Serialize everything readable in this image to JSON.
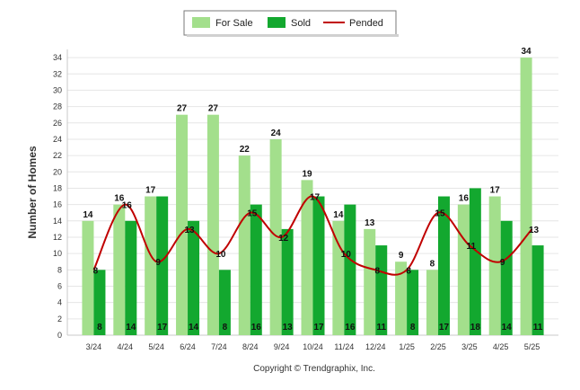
{
  "colors": {
    "for_sale": "#a3df8c",
    "sold": "#13a82f",
    "pended": "#c00000"
  },
  "legend": [
    "For Sale",
    "Sold",
    "Pended"
  ],
  "footer": "Copyright © Trendgraphix, Inc.",
  "chart_data": {
    "type": "bar",
    "ylabel": "Number of Homes",
    "xlabel": "",
    "ylim": [
      0,
      35
    ],
    "ytick_step": 2,
    "grid": true,
    "legend_position": "top-center",
    "categories": [
      "3/24",
      "4/24",
      "5/24",
      "6/24",
      "7/24",
      "8/24",
      "9/24",
      "10/24",
      "11/24",
      "12/24",
      "1/25",
      "2/25",
      "3/25",
      "4/25",
      "5/25"
    ],
    "series": [
      {
        "name": "For Sale",
        "type": "bar",
        "values": [
          14,
          16,
          17,
          27,
          27,
          22,
          24,
          19,
          14,
          13,
          9,
          8,
          16,
          17,
          34
        ]
      },
      {
        "name": "Sold",
        "type": "bar",
        "values": [
          8,
          14,
          17,
          14,
          8,
          16,
          13,
          17,
          16,
          11,
          8,
          17,
          18,
          14,
          11
        ]
      },
      {
        "name": "Pended",
        "type": "line",
        "values": [
          8,
          16,
          9,
          13,
          10,
          15,
          12,
          17,
          10,
          8,
          8,
          15,
          11,
          9,
          13
        ]
      }
    ]
  }
}
